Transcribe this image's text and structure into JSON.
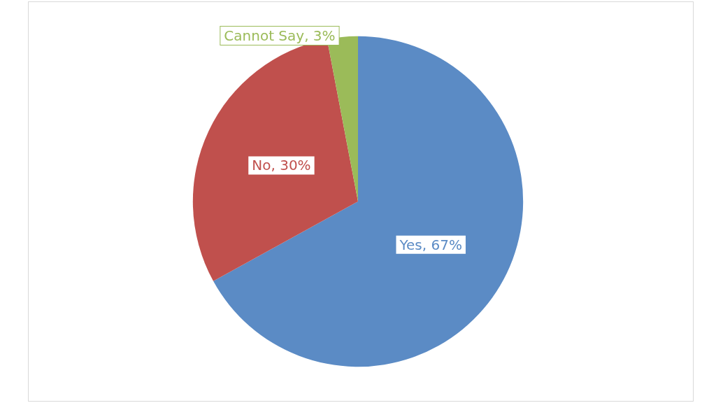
{
  "chart_data": {
    "type": "pie",
    "categories": [
      "Yes",
      "No",
      "Cannot Say"
    ],
    "values": [
      67,
      30,
      3
    ],
    "colors": [
      "#5b8bc5",
      "#c0504d",
      "#9bbb59"
    ],
    "value_labels": [
      ", 67%",
      ", 30%",
      ", 3%"
    ]
  }
}
